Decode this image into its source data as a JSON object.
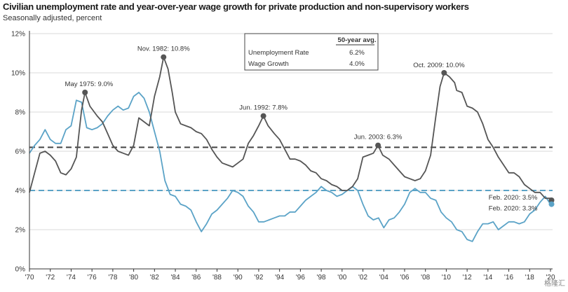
{
  "chart_data": {
    "type": "line",
    "title": "Civilian unemployment rate and year-over-year wage growth for private production and non-supervisory workers",
    "subtitle": "Seasonally adjusted, percent",
    "ylim": [
      0,
      12
    ],
    "y_ticks": [
      "0%",
      "2%",
      "4%",
      "6%",
      "8%",
      "10%",
      "12%"
    ],
    "x_range": [
      1970,
      2020.2
    ],
    "x_ticks": [
      "'70",
      "'72",
      "'74",
      "'76",
      "'78",
      "'80",
      "'82",
      "'84",
      "'86",
      "'88",
      "'90",
      "'92",
      "'94",
      "'96",
      "'98",
      "'00",
      "'02",
      "'04",
      "'06",
      "'08",
      "'10",
      "'12",
      "'14",
      "'16",
      "'18",
      "'20"
    ],
    "legend": {
      "header": "50-year avg.",
      "rows": [
        {
          "label": "Unemployment Rate",
          "value": "6.2%",
          "color": "#555555"
        },
        {
          "label": "Wage Growth",
          "value": "4.0%",
          "color": "#5ba3c7"
        }
      ]
    },
    "averages": {
      "unemployment": 6.2,
      "wage_growth": 4.0
    },
    "series": [
      {
        "name": "Unemployment Rate",
        "color": "#555555",
        "points": [
          [
            1970.0,
            3.9
          ],
          [
            1970.5,
            4.9
          ],
          [
            1971.0,
            5.9
          ],
          [
            1971.5,
            6.0
          ],
          [
            1972.0,
            5.8
          ],
          [
            1972.5,
            5.5
          ],
          [
            1973.0,
            4.9
          ],
          [
            1973.5,
            4.8
          ],
          [
            1974.0,
            5.1
          ],
          [
            1974.5,
            5.7
          ],
          [
            1975.0,
            8.1
          ],
          [
            1975.33,
            9.0
          ],
          [
            1975.8,
            8.3
          ],
          [
            1976.5,
            7.8
          ],
          [
            1977.0,
            7.5
          ],
          [
            1977.5,
            6.9
          ],
          [
            1978.0,
            6.3
          ],
          [
            1978.5,
            6.0
          ],
          [
            1979.0,
            5.9
          ],
          [
            1979.5,
            5.8
          ],
          [
            1980.0,
            6.3
          ],
          [
            1980.5,
            7.7
          ],
          [
            1981.0,
            7.5
          ],
          [
            1981.5,
            7.3
          ],
          [
            1982.0,
            8.8
          ],
          [
            1982.5,
            9.8
          ],
          [
            1982.87,
            10.8
          ],
          [
            1983.3,
            10.2
          ],
          [
            1983.7,
            9.0
          ],
          [
            1984.0,
            8.0
          ],
          [
            1984.5,
            7.4
          ],
          [
            1985.0,
            7.3
          ],
          [
            1985.5,
            7.2
          ],
          [
            1986.0,
            7.0
          ],
          [
            1986.5,
            6.9
          ],
          [
            1987.0,
            6.6
          ],
          [
            1987.5,
            6.1
          ],
          [
            1988.0,
            5.7
          ],
          [
            1988.5,
            5.4
          ],
          [
            1989.0,
            5.3
          ],
          [
            1989.5,
            5.2
          ],
          [
            1990.0,
            5.4
          ],
          [
            1990.5,
            5.6
          ],
          [
            1991.0,
            6.4
          ],
          [
            1991.5,
            6.8
          ],
          [
            1992.0,
            7.3
          ],
          [
            1992.45,
            7.8
          ],
          [
            1992.9,
            7.3
          ],
          [
            1993.5,
            6.9
          ],
          [
            1994.0,
            6.6
          ],
          [
            1994.5,
            6.1
          ],
          [
            1995.0,
            5.6
          ],
          [
            1995.5,
            5.6
          ],
          [
            1996.0,
            5.5
          ],
          [
            1996.5,
            5.3
          ],
          [
            1997.0,
            5.0
          ],
          [
            1997.5,
            4.9
          ],
          [
            1998.0,
            4.6
          ],
          [
            1998.5,
            4.5
          ],
          [
            1999.0,
            4.3
          ],
          [
            1999.5,
            4.2
          ],
          [
            2000.0,
            4.0
          ],
          [
            2000.5,
            4.0
          ],
          [
            2001.0,
            4.2
          ],
          [
            2001.5,
            4.6
          ],
          [
            2002.0,
            5.7
          ],
          [
            2002.5,
            5.8
          ],
          [
            2003.0,
            5.9
          ],
          [
            2003.45,
            6.3
          ],
          [
            2003.9,
            5.8
          ],
          [
            2004.5,
            5.6
          ],
          [
            2005.0,
            5.3
          ],
          [
            2005.5,
            5.0
          ],
          [
            2006.0,
            4.7
          ],
          [
            2006.5,
            4.6
          ],
          [
            2007.0,
            4.5
          ],
          [
            2007.5,
            4.6
          ],
          [
            2008.0,
            5.0
          ],
          [
            2008.5,
            5.8
          ],
          [
            2009.0,
            7.8
          ],
          [
            2009.4,
            9.3
          ],
          [
            2009.79,
            10.0
          ],
          [
            2010.3,
            9.8
          ],
          [
            2010.8,
            9.5
          ],
          [
            2011.0,
            9.1
          ],
          [
            2011.5,
            9.0
          ],
          [
            2012.0,
            8.3
          ],
          [
            2012.5,
            8.2
          ],
          [
            2013.0,
            8.0
          ],
          [
            2013.5,
            7.4
          ],
          [
            2014.0,
            6.6
          ],
          [
            2014.5,
            6.2
          ],
          [
            2015.0,
            5.7
          ],
          [
            2015.5,
            5.3
          ],
          [
            2016.0,
            4.9
          ],
          [
            2016.5,
            4.9
          ],
          [
            2017.0,
            4.7
          ],
          [
            2017.5,
            4.3
          ],
          [
            2018.0,
            4.1
          ],
          [
            2018.5,
            3.9
          ],
          [
            2019.0,
            3.9
          ],
          [
            2019.5,
            3.6
          ],
          [
            2020.0,
            3.6
          ],
          [
            2020.1,
            3.5
          ]
        ]
      },
      {
        "name": "Wage Growth",
        "color": "#5ba3c7",
        "points": [
          [
            1970.0,
            5.9
          ],
          [
            1970.5,
            6.3
          ],
          [
            1971.0,
            6.6
          ],
          [
            1971.5,
            7.1
          ],
          [
            1972.0,
            6.6
          ],
          [
            1972.5,
            6.4
          ],
          [
            1973.0,
            6.4
          ],
          [
            1973.5,
            7.1
          ],
          [
            1974.0,
            7.3
          ],
          [
            1974.5,
            8.6
          ],
          [
            1975.0,
            8.5
          ],
          [
            1975.5,
            7.2
          ],
          [
            1976.0,
            7.1
          ],
          [
            1976.5,
            7.2
          ],
          [
            1977.0,
            7.4
          ],
          [
            1977.5,
            7.8
          ],
          [
            1978.0,
            8.1
          ],
          [
            1978.5,
            8.3
          ],
          [
            1979.0,
            8.1
          ],
          [
            1979.5,
            8.2
          ],
          [
            1980.0,
            8.8
          ],
          [
            1980.5,
            9.0
          ],
          [
            1981.0,
            8.7
          ],
          [
            1981.5,
            8.0
          ],
          [
            1982.0,
            7.0
          ],
          [
            1982.5,
            6.0
          ],
          [
            1983.0,
            4.5
          ],
          [
            1983.5,
            3.8
          ],
          [
            1984.0,
            3.7
          ],
          [
            1984.5,
            3.3
          ],
          [
            1985.0,
            3.2
          ],
          [
            1985.5,
            3.0
          ],
          [
            1986.0,
            2.4
          ],
          [
            1986.5,
            1.9
          ],
          [
            1987.0,
            2.3
          ],
          [
            1987.5,
            2.8
          ],
          [
            1988.0,
            3.0
          ],
          [
            1988.5,
            3.3
          ],
          [
            1989.0,
            3.6
          ],
          [
            1989.5,
            4.0
          ],
          [
            1990.0,
            3.9
          ],
          [
            1990.5,
            3.7
          ],
          [
            1991.0,
            3.2
          ],
          [
            1991.5,
            2.9
          ],
          [
            1992.0,
            2.4
          ],
          [
            1992.5,
            2.4
          ],
          [
            1993.0,
            2.5
          ],
          [
            1993.5,
            2.6
          ],
          [
            1994.0,
            2.7
          ],
          [
            1994.5,
            2.7
          ],
          [
            1995.0,
            2.9
          ],
          [
            1995.5,
            2.9
          ],
          [
            1996.0,
            3.2
          ],
          [
            1996.5,
            3.5
          ],
          [
            1997.0,
            3.7
          ],
          [
            1997.5,
            3.9
          ],
          [
            1998.0,
            4.2
          ],
          [
            1998.5,
            4.0
          ],
          [
            1999.0,
            3.9
          ],
          [
            1999.5,
            3.7
          ],
          [
            2000.0,
            3.8
          ],
          [
            2000.5,
            4.0
          ],
          [
            2001.0,
            4.2
          ],
          [
            2001.5,
            4.0
          ],
          [
            2002.0,
            3.3
          ],
          [
            2002.5,
            2.7
          ],
          [
            2003.0,
            2.5
          ],
          [
            2003.5,
            2.6
          ],
          [
            2004.0,
            2.1
          ],
          [
            2004.5,
            2.5
          ],
          [
            2005.0,
            2.6
          ],
          [
            2005.5,
            2.9
          ],
          [
            2006.0,
            3.3
          ],
          [
            2006.5,
            3.9
          ],
          [
            2007.0,
            4.1
          ],
          [
            2007.5,
            3.9
          ],
          [
            2008.0,
            3.9
          ],
          [
            2008.5,
            3.6
          ],
          [
            2009.0,
            3.5
          ],
          [
            2009.5,
            2.9
          ],
          [
            2010.0,
            2.6
          ],
          [
            2010.5,
            2.4
          ],
          [
            2011.0,
            2.0
          ],
          [
            2011.5,
            1.9
          ],
          [
            2012.0,
            1.5
          ],
          [
            2012.5,
            1.4
          ],
          [
            2013.0,
            1.9
          ],
          [
            2013.5,
            2.3
          ],
          [
            2014.0,
            2.3
          ],
          [
            2014.5,
            2.4
          ],
          [
            2015.0,
            2.0
          ],
          [
            2015.5,
            2.2
          ],
          [
            2016.0,
            2.4
          ],
          [
            2016.5,
            2.4
          ],
          [
            2017.0,
            2.3
          ],
          [
            2017.5,
            2.4
          ],
          [
            2018.0,
            2.8
          ],
          [
            2018.5,
            3.0
          ],
          [
            2019.0,
            3.4
          ],
          [
            2019.5,
            3.7
          ],
          [
            2020.0,
            3.3
          ],
          [
            2020.1,
            3.3
          ]
        ]
      }
    ],
    "annotations": [
      {
        "label": "May 1975: 9.0%",
        "x": 1975.33,
        "y": 9.0,
        "marker": true,
        "anchor": "end"
      },
      {
        "label": "Nov. 1982: 10.8%",
        "x": 1982.87,
        "y": 10.8,
        "marker": true,
        "anchor": "middle"
      },
      {
        "label": "Jun. 1992: 7.8%",
        "x": 1992.45,
        "y": 7.8,
        "marker": true,
        "anchor": "middle"
      },
      {
        "label": "Jun. 2003: 6.3%",
        "x": 2003.45,
        "y": 6.3,
        "marker": true,
        "anchor": "middle"
      },
      {
        "label": "Oct. 2009: 10.0%",
        "x": 2009.79,
        "y": 10.0,
        "marker": true,
        "anchor": "start"
      },
      {
        "label": "Feb. 2020: 3.5%",
        "x": 2020.1,
        "y": 3.5,
        "marker": true,
        "anchor": "end"
      },
      {
        "label": "Feb. 2020: 3.3%",
        "x": 2020.1,
        "y": 3.3,
        "marker": true,
        "anchor": "end"
      }
    ]
  },
  "watermark": "格隆汇"
}
